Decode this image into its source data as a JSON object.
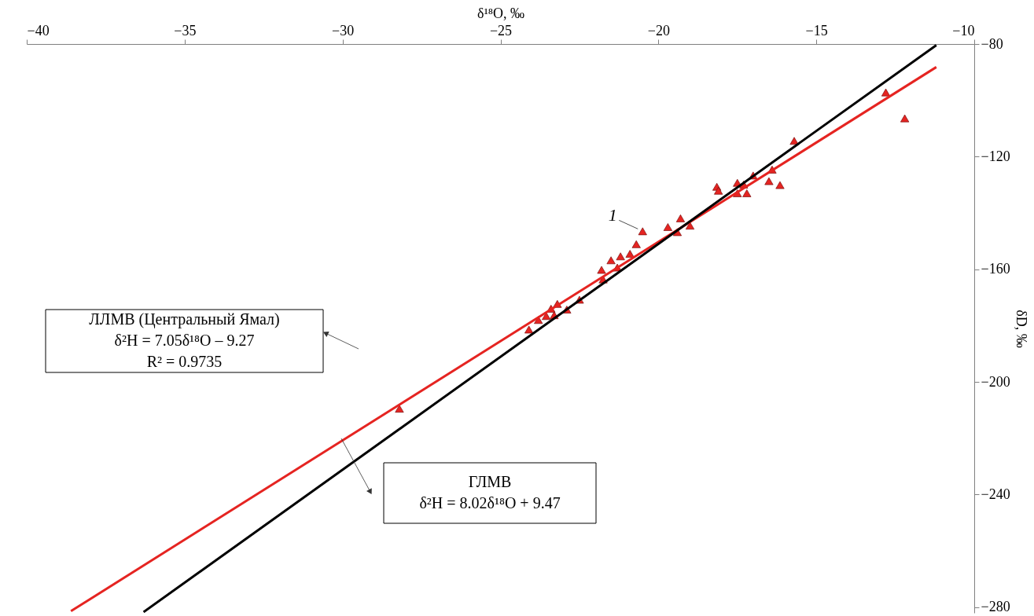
{
  "chart_data": {
    "type": "scatter",
    "xlabel": "δ¹⁸O, ‰",
    "ylabel": "δD, ‰",
    "xlim": [
      -40,
      -10
    ],
    "xticks": [
      -40,
      -35,
      -30,
      -25,
      -20,
      -15,
      -10
    ],
    "ylim": [
      -282,
      -80
    ],
    "yticks": [
      -80,
      -120,
      -160,
      -200,
      -240,
      -280
    ],
    "grid": false,
    "marker": "triangle",
    "series": [
      {
        "color": "#e52421",
        "x": [
          -12.8,
          -12.2,
          -15.7,
          -16.4,
          -17.0,
          -16.5,
          -16.15,
          -18.15,
          -18.1,
          -17.5,
          -17.3,
          -17.5,
          -17.2,
          -20.5,
          -19.7,
          -19.3,
          -19.4,
          -19.0,
          -20.7,
          -20.9,
          -21.2,
          -21.5,
          -21.3,
          -21.8,
          -21.75,
          -22.5,
          -22.9,
          -23.2,
          -23.4,
          -23.3,
          -23.55,
          -23.8,
          -24.1,
          -28.2
        ],
        "values": [
          -97.2,
          -106.4,
          -114.4,
          -124.6,
          -126.7,
          -128.7,
          -130.1,
          -130.7,
          -132.1,
          -129.3,
          -129.9,
          -133.0,
          -133.0,
          -146.5,
          -145.0,
          -141.9,
          -146.8,
          -144.5,
          -151.1,
          -154.5,
          -155.4,
          -156.8,
          -159.4,
          -160.2,
          -163.6,
          -170.8,
          -174.3,
          -172.3,
          -174.0,
          -176.3,
          -176.6,
          -178.0,
          -181.4,
          -209.5
        ]
      },
      {
        "type": "line",
        "marker": "none",
        "line_style": "solid",
        "color": "#e52421",
        "x": [
          -38.6,
          -11.2
        ],
        "values": [
          -281.4,
          -88.2
        ]
      },
      {
        "type": "line",
        "marker": "none",
        "line_style": "solid",
        "color": "#000000",
        "x": [
          -36.3,
          -11.2
        ],
        "values": [
          -281.7,
          -80.4
        ]
      }
    ],
    "annotations": [
      {
        "text": "1",
        "x": -20.5,
        "y": -146.5
      },
      "ЛЛМВ (Центральный Ямал)\nδ²H = 7.05δ¹⁸O – 9.27\nR² = 0.9735",
      "ГЛМВ\nδ²H = 8.02δ¹⁸O + 9.47"
    ]
  }
}
